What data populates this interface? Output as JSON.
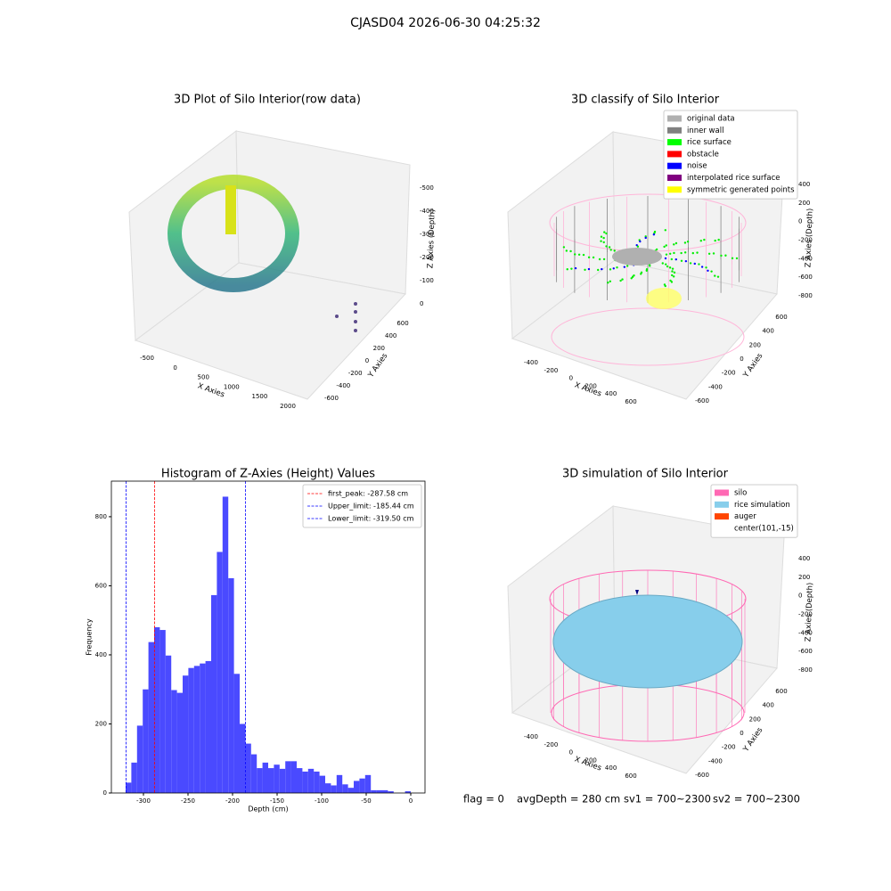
{
  "suptitle": "CJASD04 2026-06-30 04:25:32",
  "annotations": [
    "flag = 0",
    "avgDepth = 280 cm",
    "sv1 = 700~2300",
    "sv2 = 700~2300"
  ],
  "chart_data": [
    {
      "type": "scatter3d",
      "title": "3D Plot of Silo Interior(row data)",
      "xlabel": "X Axies",
      "ylabel": "Y Axies",
      "zlabel": "Z Axies (Depth)",
      "xlim": [
        -700,
        2250
      ],
      "xticks": [
        -500,
        0,
        500,
        1000,
        1500,
        2000
      ],
      "ylim": [
        -700,
        700
      ],
      "yticks": [
        -600,
        -400,
        -200,
        0,
        200,
        400,
        600
      ],
      "zlim": [
        -550,
        30
      ],
      "zticks": [
        0,
        -100,
        -200,
        -300,
        -400,
        -500
      ]
    },
    {
      "type": "scatter3d",
      "title": "3D classify of Silo Interior",
      "xlabel": "X Axies",
      "ylabel": "Y Axies",
      "zlabel": "Z Axies (Depth)",
      "xlim": [
        -500,
        750
      ],
      "xticks": [
        -400,
        -200,
        0,
        200,
        400,
        600
      ],
      "ylim": [
        -700,
        700
      ],
      "yticks": [
        -600,
        -400,
        -200,
        0,
        200,
        400,
        600
      ],
      "zlim": [
        -900,
        500
      ],
      "zticks": [
        400,
        200,
        0,
        -200,
        -400,
        -600,
        -800
      ],
      "legend_entries": [
        {
          "name": "original data",
          "color": "#b0b0b0"
        },
        {
          "name": "inner wall",
          "color": "#808080"
        },
        {
          "name": "rice surface",
          "color": "#00ff00"
        },
        {
          "name": "obstacle",
          "color": "#ff0000"
        },
        {
          "name": "noise",
          "color": "#0000ff"
        },
        {
          "name": "interpolated rice surface",
          "color": "#800080"
        },
        {
          "name": "symmetric generated points",
          "color": "#ffff00"
        }
      ]
    },
    {
      "type": "histogram",
      "title": "Histogram of Z-Axies (Height) Values",
      "xlabel": "Depth (cm)",
      "ylabel": "Frequency",
      "color": "#4a4aff",
      "bins": [
        -320,
        -313.6,
        -307.2,
        -300.8,
        -294.4,
        -288,
        -281.6,
        -275.2,
        -268.8,
        -262.4,
        -256,
        -249.6,
        -243.2,
        -236.8,
        -230.4,
        -224,
        -217.6,
        -211.2,
        -204.8,
        -198.4,
        -192,
        -185.6,
        -179.2,
        -172.8,
        -166.4,
        -160,
        -153.6,
        -147.2,
        -140.8,
        -134.4,
        -128,
        -121.6,
        -115.2,
        -108.8,
        -102.4,
        -96,
        -89.6,
        -83.2,
        -76.8,
        -70.4,
        -64,
        -57.6,
        -51.2,
        -44.8,
        -38.4,
        -32,
        -25.6,
        -19.2,
        -12.8,
        -6.4,
        0
      ],
      "counts": [
        30,
        88,
        195,
        300,
        437,
        480,
        472,
        398,
        298,
        290,
        340,
        362,
        368,
        375,
        382,
        573,
        698,
        858,
        622,
        345,
        200,
        143,
        112,
        72,
        88,
        72,
        82,
        70,
        92,
        92,
        72,
        62,
        70,
        62,
        50,
        28,
        22,
        52,
        25,
        15,
        35,
        42,
        52,
        8,
        8,
        8,
        5,
        0,
        0,
        5
      ],
      "xlim": [
        -336,
        16
      ],
      "xticks": [
        -300,
        -250,
        -200,
        -150,
        -100,
        -50,
        0
      ],
      "ylim": [
        0,
        903
      ],
      "yticks": [
        0,
        200,
        400,
        600,
        800
      ],
      "vlines": [
        {
          "name": "first_peak: -287.58 cm",
          "value": -287.58,
          "color": "#ff0000"
        },
        {
          "name": "Upper_limit: -185.44 cm",
          "value": -185.44,
          "color": "#0000ff"
        },
        {
          "name": "Lower_limit: -319.50 cm",
          "value": -319.5,
          "color": "#0000ff"
        }
      ],
      "legend": "upper right"
    },
    {
      "type": "scatter3d",
      "title": "3D simulation of Silo Interior",
      "xlabel": "X Axies",
      "ylabel": "Y Axies",
      "zlabel": "Z Axies (Depth)",
      "xlim": [
        -500,
        750
      ],
      "xticks": [
        -400,
        -200,
        0,
        200,
        400,
        600
      ],
      "ylim": [
        -700,
        700
      ],
      "yticks": [
        -600,
        -400,
        -200,
        0,
        200,
        400,
        600
      ],
      "zlim": [
        -900,
        500
      ],
      "zticks": [
        400,
        200,
        0,
        -200,
        -400,
        -600,
        -800
      ],
      "legend_entries": [
        {
          "name": "silo",
          "color": "#ff69b4"
        },
        {
          "name": "rice simulation",
          "color": "#87ceeb"
        },
        {
          "name": "auger",
          "color": "#ff4500"
        },
        {
          "name": "center(101,-15)"
        }
      ]
    }
  ]
}
